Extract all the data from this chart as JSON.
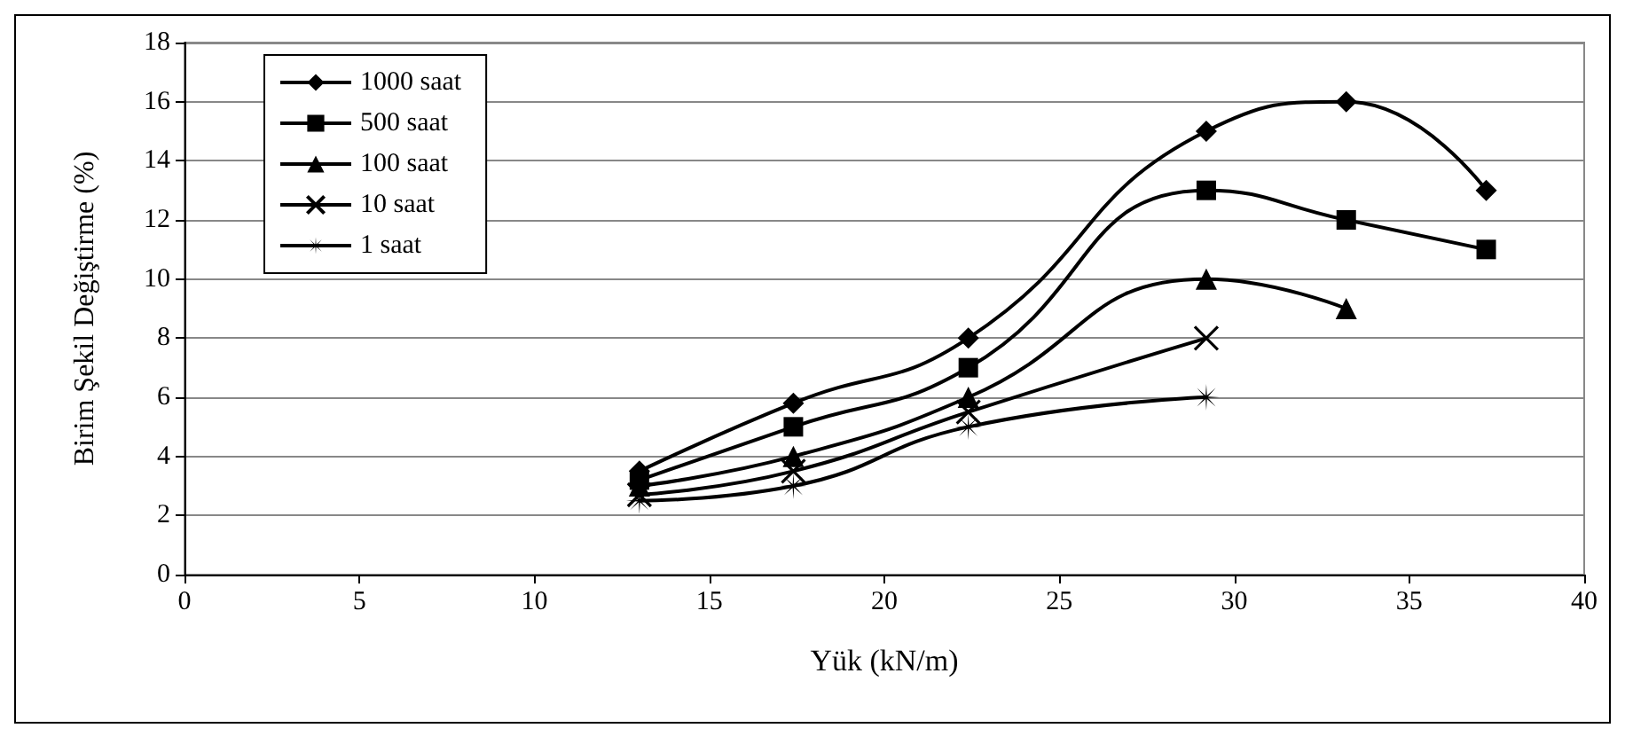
{
  "chart_data": {
    "type": "line",
    "xlabel": "Yük (kN/m)",
    "ylabel": "Birim Şekil Değiştirme (%)",
    "xlim": [
      0,
      40
    ],
    "xticks": [
      0,
      5,
      10,
      15,
      20,
      25,
      30,
      35,
      40
    ],
    "ylim": [
      0,
      18
    ],
    "yticks": [
      0,
      2,
      4,
      6,
      8,
      10,
      12,
      14,
      16,
      18
    ],
    "grid": "y",
    "legend": "top left",
    "series": [
      {
        "name": "1000 saat",
        "color": "#000000",
        "marker": "diamond",
        "x": [
          13,
          17.4,
          22.4,
          29.2,
          33.2,
          37.2
        ],
        "values": [
          3.5,
          5.8,
          8,
          15,
          16,
          13
        ]
      },
      {
        "name": "500 saat",
        "color": "#000000",
        "marker": "square",
        "x": [
          13,
          17.4,
          22.4,
          29.2,
          33.2,
          37.2
        ],
        "values": [
          3.2,
          5,
          7,
          13,
          12,
          11
        ]
      },
      {
        "name": "100 saat",
        "color": "#000000",
        "marker": "triangle",
        "x": [
          13,
          17.4,
          22.4,
          29.2,
          33.2
        ],
        "values": [
          3,
          4,
          6,
          10,
          9
        ]
      },
      {
        "name": "10 saat",
        "color": "#000000",
        "marker": "cross",
        "x": [
          13,
          17.4,
          22.4,
          29.2
        ],
        "values": [
          2.7,
          3.5,
          5.5,
          8
        ]
      },
      {
        "name": "1 saat",
        "color": "#000000",
        "marker": "star",
        "x": [
          13,
          17.4,
          22.4,
          29.2
        ],
        "values": [
          2.5,
          3,
          5,
          6
        ]
      }
    ]
  }
}
